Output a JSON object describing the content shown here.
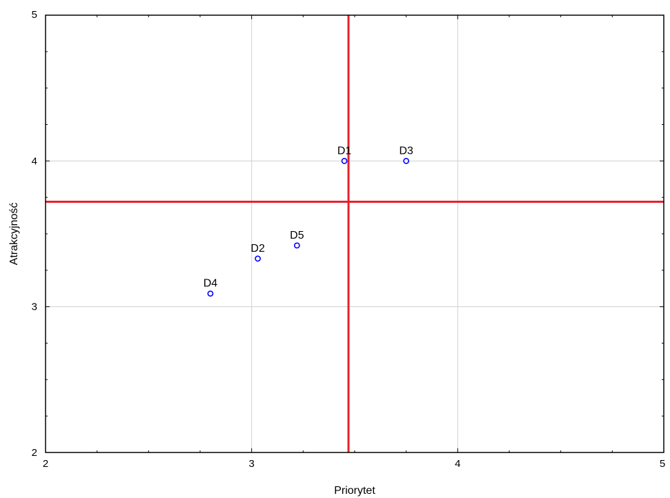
{
  "chart_data": {
    "type": "scatter",
    "title": "",
    "xlabel": "Priorytet",
    "ylabel": "Atrakcyjność",
    "xlim": [
      2,
      5
    ],
    "ylim": [
      2,
      5
    ],
    "xticks": [
      "2",
      "3",
      "4",
      "5"
    ],
    "yticks": [
      "2",
      "3",
      "4",
      "5"
    ],
    "grid": true,
    "points": [
      {
        "label": "D1",
        "x": 3.45,
        "y": 4.0
      },
      {
        "label": "D3",
        "x": 3.75,
        "y": 4.0
      },
      {
        "label": "D5",
        "x": 3.22,
        "y": 3.42
      },
      {
        "label": "D2",
        "x": 3.03,
        "y": 3.33
      },
      {
        "label": "D4",
        "x": 2.8,
        "y": 3.09
      }
    ],
    "reference_lines": {
      "vertical_x": 3.47,
      "horizontal_y": 3.72
    },
    "colors": {
      "points": "#0000ff",
      "reference_lines": "#e8202a",
      "grid": "#d0d0d0",
      "frame": "#000000"
    }
  }
}
